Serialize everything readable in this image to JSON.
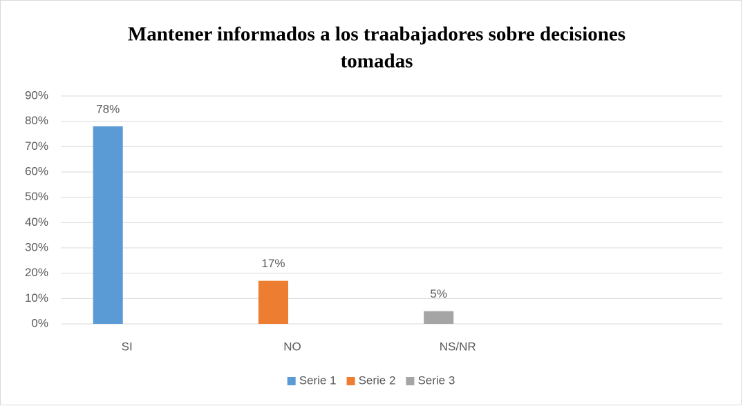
{
  "chart_data": {
    "type": "bar",
    "title": [
      "Mantener informados a los traabajadores sobre decisiones",
      "tomadas"
    ],
    "categories": [
      "SI",
      "NO",
      "NS/NR",
      null
    ],
    "series": [
      {
        "name": "Serie 1",
        "color": "#5b9bd5",
        "values": [
          78,
          null,
          null,
          null
        ],
        "value_labels": [
          "78%",
          null,
          null,
          null
        ]
      },
      {
        "name": "Serie 2",
        "color": "#ed7d31",
        "values": [
          null,
          17,
          null,
          null
        ],
        "value_labels": [
          null,
          "17%",
          null,
          null
        ]
      },
      {
        "name": "Serie 3",
        "color": "#a5a5a5",
        "values": [
          null,
          null,
          5,
          null
        ],
        "value_labels": [
          null,
          null,
          "5%",
          null
        ]
      }
    ],
    "ylim": [
      0,
      90
    ],
    "yticks": [
      {
        "value": 0,
        "label": "0%"
      },
      {
        "value": 10,
        "label": "10%"
      },
      {
        "value": 20,
        "label": "20%"
      },
      {
        "value": 30,
        "label": "30%"
      },
      {
        "value": 40,
        "label": "40%"
      },
      {
        "value": 50,
        "label": "50%"
      },
      {
        "value": 60,
        "label": "60%"
      },
      {
        "value": 70,
        "label": "70%"
      },
      {
        "value": 80,
        "label": "80%"
      },
      {
        "value": 90,
        "label": "90%"
      }
    ],
    "grid": true,
    "legend": "bottom"
  }
}
